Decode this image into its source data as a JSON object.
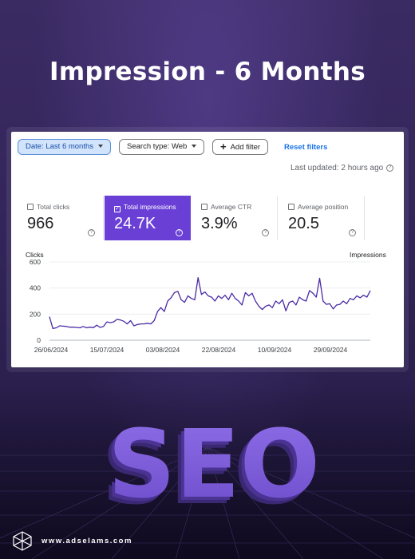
{
  "headline": "Impression - 6 Months",
  "filters": {
    "date": "Date: Last 6 months",
    "search_type": "Search type: Web",
    "add_filter": "Add filter",
    "reset": "Reset filters"
  },
  "last_updated": "Last updated: 2 hours ago",
  "metrics": [
    {
      "label": "Total clicks",
      "value": "966",
      "selected": false
    },
    {
      "label": "Total impressions",
      "value": "24.7K",
      "selected": true
    },
    {
      "label": "Average CTR",
      "value": "3.9%",
      "selected": false
    },
    {
      "label": "Average position",
      "value": "20.5",
      "selected": false
    }
  ],
  "hero_text": "SEO",
  "footer": {
    "website": "www.adselams.com"
  },
  "colors": {
    "accent": "#6a3fd6",
    "line": "#4b2ba6",
    "background": "#33255a"
  },
  "chart_data": {
    "type": "line",
    "ylabel": "Clicks",
    "y2label": "Impressions",
    "ylim": [
      0,
      600
    ],
    "yticks": [
      "600",
      "400",
      "200",
      "0"
    ],
    "xticks": [
      "26/06/2024",
      "15/07/2024",
      "03/08/2024",
      "22/08/2024",
      "10/09/2024",
      "29/09/2024"
    ],
    "grid": true,
    "series": [
      {
        "values": [
          180,
          90,
          95,
          110,
          108,
          105,
          100,
          100,
          98,
          95,
          105,
          95,
          100,
          96,
          115,
          98,
          105,
          140,
          135,
          140,
          160,
          155,
          145,
          125,
          150,
          110,
          120,
          125,
          125,
          130,
          125,
          150,
          220,
          250,
          220,
          300,
          325,
          365,
          375,
          310,
          290,
          340,
          320,
          310,
          480,
          350,
          370,
          340,
          330,
          300,
          340,
          320,
          345,
          310,
          360,
          320,
          300,
          270,
          365,
          340,
          360,
          300,
          260,
          235,
          260,
          270,
          250,
          300,
          280,
          310,
          225,
          290,
          300,
          270,
          330,
          310,
          300,
          380,
          360,
          330,
          475,
          300,
          275,
          280,
          240,
          270,
          275,
          300,
          280,
          320,
          310,
          340,
          325,
          345,
          330,
          380
        ]
      }
    ]
  }
}
